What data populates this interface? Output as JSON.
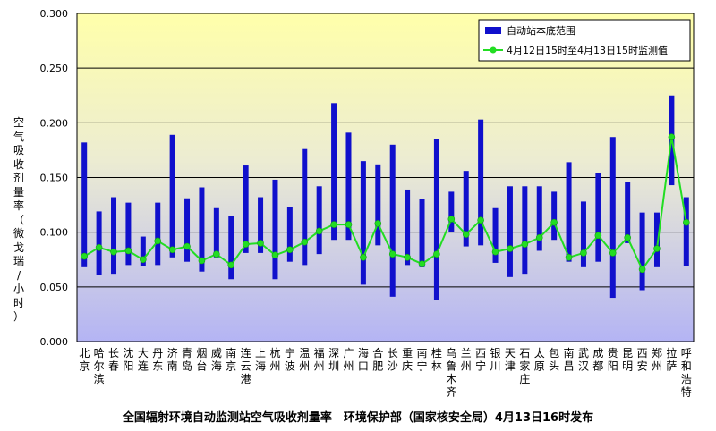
{
  "chart_data": {
    "type": "bar",
    "title": "全国辐射环境自动监测站空气吸收剂量率　环境保护部（国家核安全局）4月13日16时发布",
    "ylabel": "空气吸收剂量率（微戈瑞/小时）",
    "ylim": [
      0,
      0.3
    ],
    "yticks": [
      "0.000",
      "0.050",
      "0.100",
      "0.150",
      "0.200",
      "0.250",
      "0.300"
    ],
    "categories": [
      "北京",
      "哈尔滨",
      "长春",
      "沈阳",
      "大连",
      "丹东",
      "济南",
      "青岛",
      "烟台",
      "威海",
      "南京",
      "连云港",
      "上海",
      "杭州",
      "宁波",
      "温州",
      "福州",
      "深圳",
      "广州",
      "海口",
      "合肥",
      "长沙",
      "重庆",
      "南宁",
      "桂林",
      "乌鲁木齐",
      "兰州",
      "西宁",
      "银川",
      "天津",
      "石家庄",
      "太原",
      "包头",
      "南昌",
      "武汉",
      "成都",
      "贵阳",
      "昆明",
      "西安",
      "郑州",
      "拉萨",
      "呼和浩特"
    ],
    "series": [
      {
        "name": "自动站本底范围",
        "kind": "range-bar",
        "color": "#1010CC",
        "low": [
          0.068,
          0.061,
          0.062,
          0.07,
          0.069,
          0.07,
          0.077,
          0.073,
          0.064,
          0.077,
          0.057,
          0.081,
          0.081,
          0.057,
          0.073,
          0.07,
          0.08,
          0.093,
          0.093,
          0.052,
          0.088,
          0.041,
          0.07,
          0.068,
          0.038,
          0.1,
          0.087,
          0.088,
          0.072,
          0.059,
          0.062,
          0.083,
          0.093,
          0.073,
          0.068,
          0.073,
          0.04,
          0.09,
          0.047,
          0.068,
          0.143,
          0.069
        ],
        "high": [
          0.182,
          0.119,
          0.132,
          0.127,
          0.096,
          0.127,
          0.189,
          0.131,
          0.141,
          0.122,
          0.115,
          0.161,
          0.132,
          0.148,
          0.123,
          0.176,
          0.142,
          0.218,
          0.191,
          0.165,
          0.162,
          0.18,
          0.139,
          0.13,
          0.185,
          0.137,
          0.156,
          0.203,
          0.122,
          0.142,
          0.142,
          0.142,
          0.137,
          0.164,
          0.128,
          0.154,
          0.187,
          0.146,
          0.118,
          0.118,
          0.225,
          0.132
        ]
      },
      {
        "name": "4月12日15时至4月13日15时监测值",
        "kind": "line",
        "color": "#22DD22",
        "values": [
          0.078,
          0.086,
          0.082,
          0.083,
          0.075,
          0.092,
          0.084,
          0.087,
          0.074,
          0.08,
          0.07,
          0.089,
          0.09,
          0.079,
          0.084,
          0.091,
          0.101,
          0.107,
          0.107,
          0.077,
          0.108,
          0.08,
          0.077,
          0.071,
          0.08,
          0.112,
          0.098,
          0.111,
          0.082,
          0.085,
          0.089,
          0.095,
          0.109,
          0.077,
          0.081,
          0.097,
          0.081,
          0.095,
          0.066,
          0.085,
          0.187,
          0.109
        ]
      }
    ],
    "grid": true,
    "legend_position": "top-right"
  }
}
